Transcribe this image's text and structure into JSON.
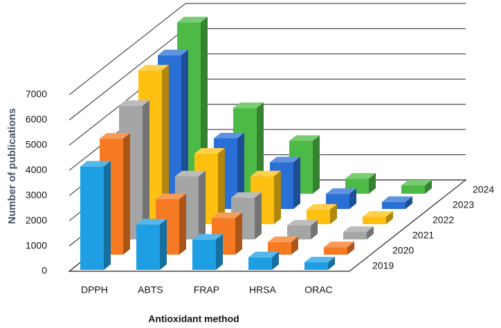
{
  "chart_data": {
    "type": "bar3d",
    "xlabel": "Antioxidant method",
    "ylabel": "Number of publications",
    "categories": [
      "DPPH",
      "ABTS",
      "FRAP",
      "HRSA",
      "ORAC"
    ],
    "series": [
      {
        "name": "2019",
        "color": "#1e9fe3",
        "values": [
          4100,
          1800,
          1200,
          500,
          300
        ]
      },
      {
        "name": "2020",
        "color": "#f57a22",
        "values": [
          4600,
          2200,
          1450,
          500,
          300
        ]
      },
      {
        "name": "2021",
        "color": "#a5a5a5",
        "values": [
          5300,
          2500,
          1650,
          550,
          300
        ]
      },
      {
        "name": "2022",
        "color": "#fdc010",
        "values": [
          6100,
          2800,
          1900,
          580,
          300
        ]
      },
      {
        "name": "2023",
        "color": "#2a6fd6",
        "values": [
          6100,
          2800,
          1850,
          600,
          280
        ]
      },
      {
        "name": "2024",
        "color": "#4cba45",
        "values": [
          6800,
          3400,
          2100,
          600,
          330
        ]
      }
    ],
    "ylim": [
      0,
      7000
    ],
    "yticks": [
      0,
      1000,
      2000,
      3000,
      4000,
      5000,
      6000,
      7000
    ],
    "grid": true
  }
}
